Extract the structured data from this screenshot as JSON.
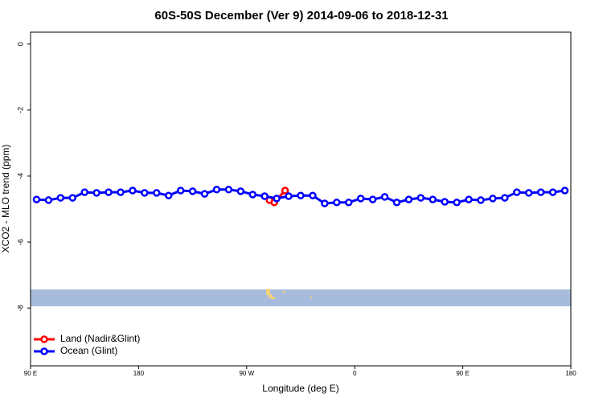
{
  "chart_data": {
    "type": "line",
    "title": "60S-50S December (Ver 9)   2014-09-06 to 2018-12-31",
    "x_label": "Longitude (deg E)",
    "y_label": "XCO2 - MLO trend (ppm)",
    "xlim": [
      90,
      540
    ],
    "ylim": [
      -9.75,
      0.36
    ],
    "xticks": [
      {
        "value": 90,
        "label": "90 E"
      },
      {
        "value": 180,
        "label": "180"
      },
      {
        "value": 270,
        "label": "90 W"
      },
      {
        "value": 360,
        "label": "0"
      },
      {
        "value": 450,
        "label": "90 E"
      },
      {
        "value": 540,
        "label": "180"
      }
    ],
    "yticks": [
      0,
      -2,
      -4,
      -6,
      -8
    ],
    "legend_position": "bottom-left",
    "series": [
      {
        "name": "Land (Nadir&Glint)",
        "color": "#ff0000",
        "x": [
          289,
          293,
          302
        ],
        "values": [
          -4.73,
          -4.8,
          -4.44
        ]
      },
      {
        "name": "Ocean (Glint)",
        "color": "#0000ff",
        "x": [
          95,
          105,
          115,
          125,
          135,
          145,
          155,
          165,
          175,
          185,
          195,
          205,
          215,
          225,
          235,
          245,
          255,
          265,
          275,
          285,
          295,
          305,
          315,
          325,
          335,
          345,
          355,
          365,
          375,
          385,
          395,
          405,
          415,
          425,
          435,
          445,
          455,
          465,
          475,
          485,
          495,
          505,
          515,
          525,
          535
        ],
        "values": [
          -4.71,
          -4.73,
          -4.66,
          -4.66,
          -4.49,
          -4.51,
          -4.49,
          -4.49,
          -4.44,
          -4.51,
          -4.51,
          -4.59,
          -4.44,
          -4.46,
          -4.54,
          -4.41,
          -4.41,
          -4.46,
          -4.56,
          -4.61,
          -4.68,
          -4.61,
          -4.59,
          -4.59,
          -4.83,
          -4.8,
          -4.8,
          -4.68,
          -4.71,
          -4.63,
          -4.8,
          -4.71,
          -4.66,
          -4.71,
          -4.78,
          -4.8,
          -4.71,
          -4.73,
          -4.68,
          -4.66,
          -4.49,
          -4.51,
          -4.49,
          -4.49,
          -4.44
        ]
      }
    ]
  }
}
